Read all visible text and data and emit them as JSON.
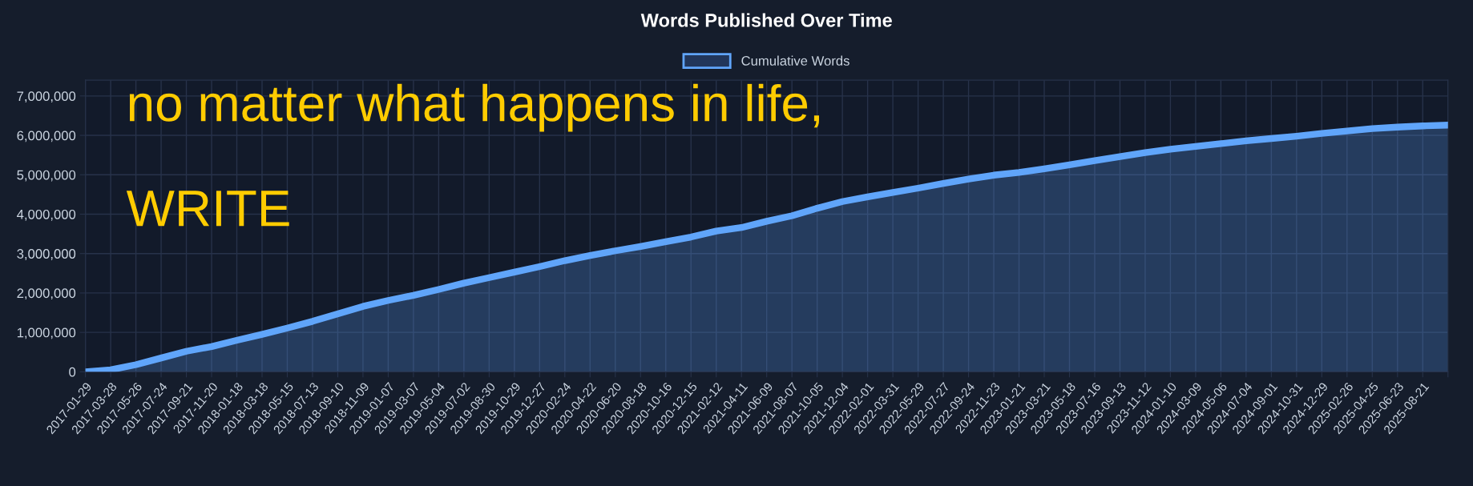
{
  "chart_data": {
    "type": "area",
    "title": "Words Published Over Time",
    "categories": [
      "2017-01-29",
      "2017-03-28",
      "2017-05-26",
      "2017-07-24",
      "2017-09-21",
      "2017-11-20",
      "2018-01-18",
      "2018-03-18",
      "2018-05-15",
      "2018-07-13",
      "2018-09-10",
      "2018-11-09",
      "2019-01-07",
      "2019-03-07",
      "2019-05-04",
      "2019-07-02",
      "2019-08-30",
      "2019-10-29",
      "2019-12-27",
      "2020-02-24",
      "2020-04-22",
      "2020-06-20",
      "2020-08-18",
      "2020-10-16",
      "2020-12-15",
      "2021-02-12",
      "2021-04-11",
      "2021-06-09",
      "2021-08-07",
      "2021-10-05",
      "2021-12-04",
      "2022-02-01",
      "2022-03-31",
      "2022-05-29",
      "2022-07-27",
      "2022-09-24",
      "2022-11-23",
      "2023-01-21",
      "2023-03-21",
      "2023-05-18",
      "2023-07-16",
      "2023-09-13",
      "2023-11-12",
      "2024-01-10",
      "2024-03-09",
      "2024-05-06",
      "2024-07-04",
      "2024-09-01",
      "2024-10-31",
      "2024-12-29",
      "2025-02-26",
      "2025-04-25",
      "2025-06-23",
      "2025-08-21",
      null
    ],
    "series": [
      {
        "name": "Cumulative Words",
        "color": "#60a5fa",
        "values": [
          0,
          50000,
          180000,
          350000,
          520000,
          640000,
          800000,
          950000,
          1110000,
          1280000,
          1470000,
          1660000,
          1810000,
          1940000,
          2090000,
          2250000,
          2390000,
          2530000,
          2670000,
          2820000,
          2950000,
          3070000,
          3180000,
          3300000,
          3420000,
          3570000,
          3660000,
          3820000,
          3960000,
          4150000,
          4320000,
          4440000,
          4550000,
          4660000,
          4780000,
          4890000,
          4990000,
          5060000,
          5150000,
          5250000,
          5360000,
          5460000,
          5560000,
          5650000,
          5720000,
          5790000,
          5860000,
          5920000,
          5980000,
          6050000,
          6110000,
          6170000,
          6210000,
          6240000,
          6260000
        ]
      }
    ],
    "ylim": [
      0,
      7400000
    ],
    "yticks": [
      {
        "value": 0,
        "label": "0"
      },
      {
        "value": 1000000,
        "label": "1,000,000"
      },
      {
        "value": 2000000,
        "label": "2,000,000"
      },
      {
        "value": 3000000,
        "label": "3,000,000"
      },
      {
        "value": 4000000,
        "label": "4,000,000"
      },
      {
        "value": 5000000,
        "label": "5,000,000"
      },
      {
        "value": 6000000,
        "label": "6,000,000"
      },
      {
        "value": 7000000,
        "label": "7,000,000"
      }
    ],
    "grid": true,
    "legend": "top",
    "marker": "none",
    "line_style": "solid",
    "annotations": [
      "no matter what happens in life,",
      "WRITE"
    ]
  }
}
